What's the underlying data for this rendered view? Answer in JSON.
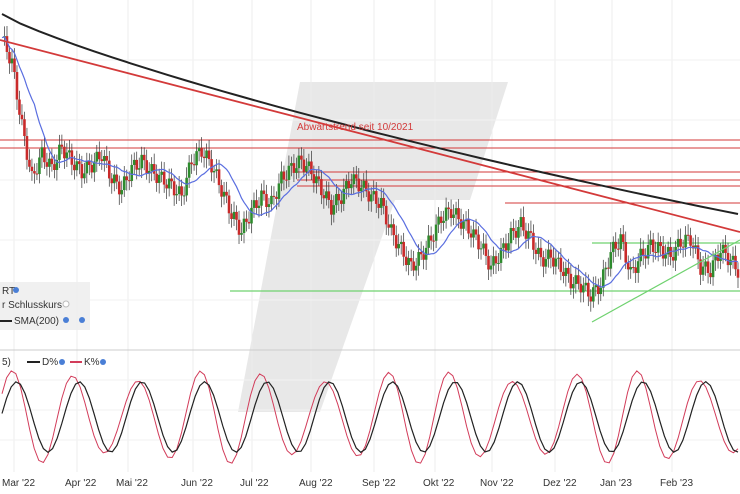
{
  "chart_data": [
    {
      "type": "candlestick",
      "title": "",
      "x_axis_labels": [
        "Mar '22",
        "Apr '22",
        "Mai '22",
        "Jun '22",
        "Jul '22",
        "Aug '22",
        "Sep '22",
        "Okt '22",
        "Nov '22",
        "Dez '22",
        "Jan '23",
        "Feb '23"
      ],
      "legend": {
        "partial_title": "RT",
        "items": [
          "r Schlusskurs",
          "SMA(200)"
        ],
        "colors": {
          "up": "#2e8b2e",
          "down": "#c92a2a",
          "sma_short": "#5a6ee0",
          "sma200": "#222222"
        }
      },
      "annotations": [
        {
          "text": "Abwärtstrend seit 10/2021",
          "color": "#d33a3a"
        }
      ],
      "trend_line_color": "#d33a3a",
      "support_line_color": "#6fd26f",
      "price_series_approx": [
        95,
        88,
        70,
        55,
        62,
        58,
        64,
        60,
        57,
        59,
        62,
        55,
        52,
        58,
        60,
        57,
        55,
        53,
        50,
        60,
        63,
        59,
        52,
        45,
        40,
        46,
        50,
        48,
        55,
        58,
        60,
        57,
        52,
        47,
        50,
        55,
        53,
        50,
        48,
        40,
        35,
        30,
        33,
        38,
        44,
        46,
        43,
        40,
        36,
        30,
        34,
        39,
        42,
        38,
        32,
        33,
        30,
        26,
        25,
        22,
        25,
        34,
        38,
        28,
        33,
        36,
        35,
        33,
        37,
        38,
        30,
        29,
        35,
        32,
        28
      ]
    },
    {
      "type": "line",
      "title": "",
      "legend": {
        "items": [
          "D%",
          "K%"
        ],
        "colors": {
          "D": "#222222",
          "K": "#d23c5a"
        }
      },
      "ylim": [
        0,
        100
      ]
    }
  ],
  "ui": {
    "legend_title": "RT",
    "legend_close": "r Schlusskurs",
    "legend_sma": "SMA(200)",
    "osc_d": "D%",
    "osc_k": "K%",
    "osc_prefix": "5)",
    "annotation": "Abwärtstrend seit 10/2021"
  }
}
